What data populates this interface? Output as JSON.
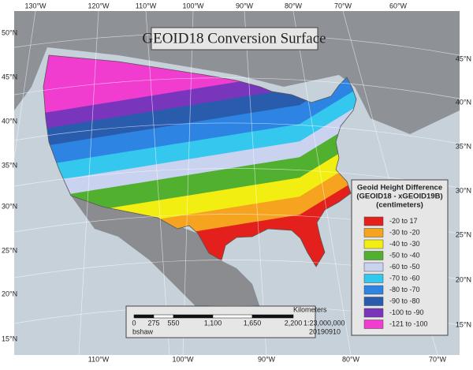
{
  "title": "GEOID18 Conversion Surface",
  "graticule": {
    "top": [
      "130°W",
      "120°W",
      "110°W",
      "100°W",
      "90°W",
      "80°W",
      "70°W",
      "60°W"
    ],
    "bottom": [
      "110°W",
      "100°W",
      "90°W",
      "80°W",
      "70°W"
    ],
    "left": [
      "50°N",
      "45°N",
      "40°N",
      "35°N",
      "30°N",
      "25°N",
      "20°N",
      "15°N"
    ],
    "right": [
      "45°N",
      "40°N",
      "35°N",
      "30°N",
      "25°N",
      "20°N",
      "15°N"
    ]
  },
  "legend": {
    "title": [
      "Geoid Height Difference",
      "(GEOID18 - xGEOID19B)",
      "(centimeters)"
    ],
    "items": [
      {
        "label": "-20 to 17",
        "color": "#e3201b"
      },
      {
        "label": "-30 to -20",
        "color": "#f6a31f"
      },
      {
        "label": "-40 to -30",
        "color": "#f2ee11"
      },
      {
        "label": "-50 to -40",
        "color": "#52b030"
      },
      {
        "label": "-60 to -50",
        "color": "#c9d2ef"
      },
      {
        "label": "-70 to -60",
        "color": "#35c8ee"
      },
      {
        "label": "-80 to -70",
        "color": "#2d84e2"
      },
      {
        "label": "-90 to -80",
        "color": "#2a5cae"
      },
      {
        "label": "-100 to -90",
        "color": "#7a35bd"
      },
      {
        "label": "-121 to -100",
        "color": "#f03ccf"
      }
    ]
  },
  "scale_bar": {
    "unit": "Kilometers",
    "ticks": [
      "0",
      "275",
      "550",
      "1,100",
      "1,650",
      "2,200"
    ],
    "ratio": "1:23,000,000",
    "author": "bshaw",
    "date": "20190910"
  }
}
